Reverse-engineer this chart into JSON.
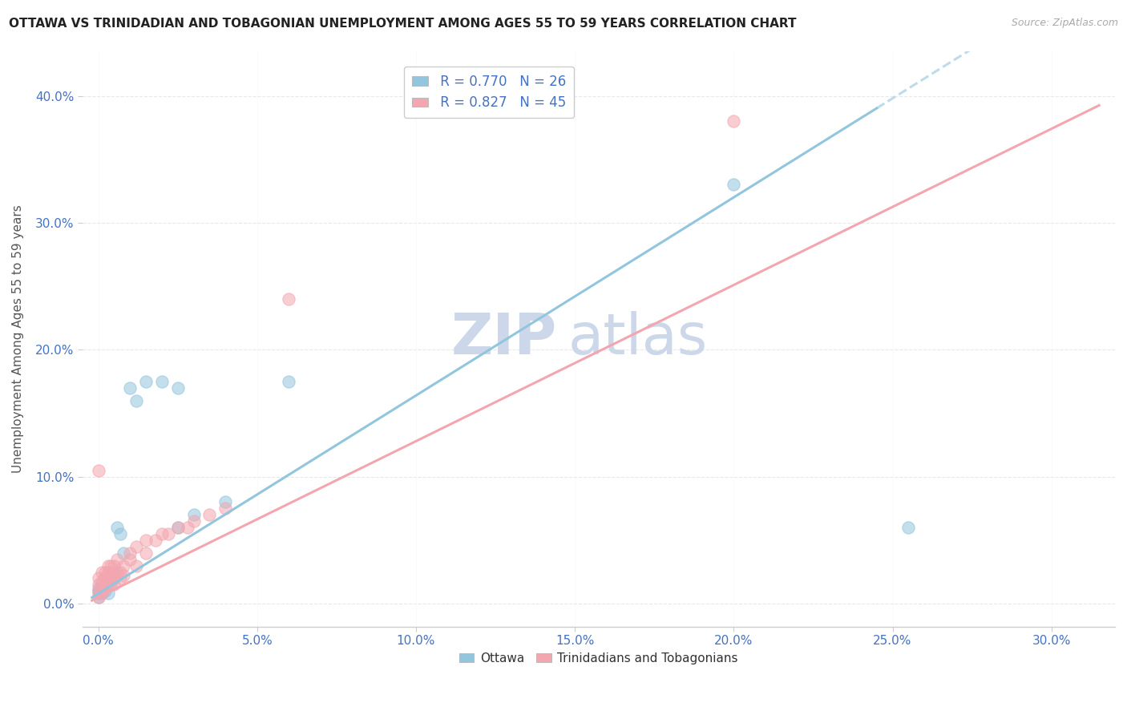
{
  "title": "OTTAWA VS TRINIDADIAN AND TOBAGONIAN UNEMPLOYMENT AMONG AGES 55 TO 59 YEARS CORRELATION CHART",
  "source": "Source: ZipAtlas.com",
  "ylabel": "Unemployment Among Ages 55 to 59 years",
  "xlabel_ticks": [
    0.0,
    0.05,
    0.1,
    0.15,
    0.2,
    0.25,
    0.3
  ],
  "ylabel_ticks": [
    0.0,
    0.1,
    0.2,
    0.3,
    0.4
  ],
  "xlim": [
    -0.005,
    0.32
  ],
  "ylim": [
    -0.018,
    0.435
  ],
  "legend_ottawa": "R = 0.770   N = 26",
  "legend_tt": "R = 0.827   N = 45",
  "ottawa_color": "#92c5de",
  "tt_color": "#f4a6b0",
  "ottawa_scatter": [
    [
      0.0,
      0.01
    ],
    [
      0.0,
      0.008
    ],
    [
      0.0,
      0.012
    ],
    [
      0.0,
      0.005
    ],
    [
      0.001,
      0.015
    ],
    [
      0.001,
      0.008
    ],
    [
      0.002,
      0.02
    ],
    [
      0.002,
      0.01
    ],
    [
      0.003,
      0.018
    ],
    [
      0.003,
      0.008
    ],
    [
      0.004,
      0.015
    ],
    [
      0.005,
      0.025
    ],
    [
      0.006,
      0.06
    ],
    [
      0.007,
      0.055
    ],
    [
      0.008,
      0.04
    ],
    [
      0.01,
      0.17
    ],
    [
      0.012,
      0.16
    ],
    [
      0.015,
      0.175
    ],
    [
      0.02,
      0.175
    ],
    [
      0.025,
      0.17
    ],
    [
      0.025,
      0.06
    ],
    [
      0.03,
      0.07
    ],
    [
      0.04,
      0.08
    ],
    [
      0.06,
      0.175
    ],
    [
      0.2,
      0.33
    ],
    [
      0.255,
      0.06
    ]
  ],
  "tt_scatter": [
    [
      0.0,
      0.005
    ],
    [
      0.0,
      0.01
    ],
    [
      0.0,
      0.015
    ],
    [
      0.0,
      0.02
    ],
    [
      0.001,
      0.01
    ],
    [
      0.001,
      0.018
    ],
    [
      0.001,
      0.025
    ],
    [
      0.001,
      0.008
    ],
    [
      0.002,
      0.02
    ],
    [
      0.002,
      0.015
    ],
    [
      0.002,
      0.025
    ],
    [
      0.002,
      0.012
    ],
    [
      0.003,
      0.015
    ],
    [
      0.003,
      0.02
    ],
    [
      0.003,
      0.025
    ],
    [
      0.003,
      0.03
    ],
    [
      0.004,
      0.025
    ],
    [
      0.004,
      0.018
    ],
    [
      0.004,
      0.03
    ],
    [
      0.005,
      0.02
    ],
    [
      0.005,
      0.03
    ],
    [
      0.005,
      0.015
    ],
    [
      0.006,
      0.025
    ],
    [
      0.006,
      0.035
    ],
    [
      0.007,
      0.025
    ],
    [
      0.007,
      0.02
    ],
    [
      0.008,
      0.03
    ],
    [
      0.008,
      0.022
    ],
    [
      0.01,
      0.035
    ],
    [
      0.01,
      0.04
    ],
    [
      0.012,
      0.03
    ],
    [
      0.012,
      0.045
    ],
    [
      0.015,
      0.04
    ],
    [
      0.015,
      0.05
    ],
    [
      0.018,
      0.05
    ],
    [
      0.02,
      0.055
    ],
    [
      0.022,
      0.055
    ],
    [
      0.025,
      0.06
    ],
    [
      0.028,
      0.06
    ],
    [
      0.03,
      0.065
    ],
    [
      0.035,
      0.07
    ],
    [
      0.04,
      0.075
    ],
    [
      0.06,
      0.24
    ],
    [
      0.2,
      0.38
    ],
    [
      0.0,
      0.105
    ]
  ],
  "watermark_line1": "ZIP",
  "watermark_line2": "atlas",
  "watermark_color": "#ccd8ea",
  "background_color": "#ffffff",
  "grid_color": "#e8e8e8"
}
